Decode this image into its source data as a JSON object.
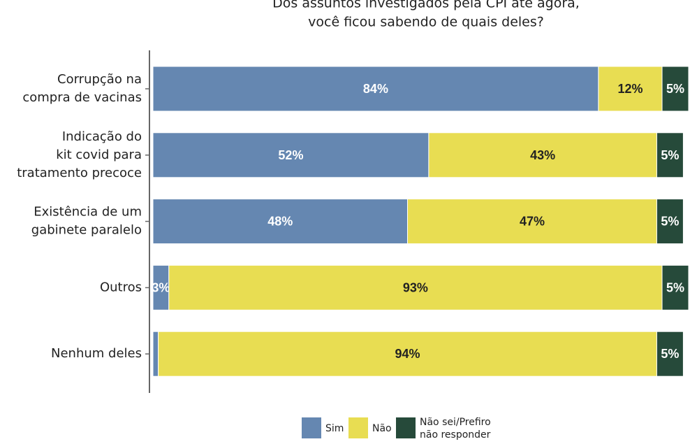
{
  "chart_data": {
    "type": "stacked_bar_horizontal",
    "title": "Dos assuntos investigados pela CPI até agora,\nvocê ficou sabendo de quais deles?",
    "categories": [
      "Corrupção na\ncompra de vacinas",
      "Indicação do\nkit covid para\ntratamento precoce",
      "Existência de um\ngabinete paralelo",
      "Outros",
      "Nenhum deles"
    ],
    "series": [
      {
        "name": "Sim",
        "color": "#6587b1",
        "values": [
          84,
          52,
          48,
          3,
          1
        ],
        "value_labels": [
          "84%",
          "52%",
          "48%",
          "3%",
          null
        ]
      },
      {
        "name": "Não",
        "color": "#e8dd52",
        "values": [
          12,
          43,
          47,
          93,
          94
        ],
        "value_labels": [
          "12%",
          "43%",
          "47%",
          "93%",
          "94%"
        ]
      },
      {
        "name": "Não sei/Prefiro\nnão responder",
        "color": "#264a3a",
        "values": [
          5,
          5,
          5,
          5,
          5
        ],
        "value_labels": [
          "5%",
          "5%",
          "5%",
          "5%",
          "5%"
        ]
      }
    ]
  }
}
